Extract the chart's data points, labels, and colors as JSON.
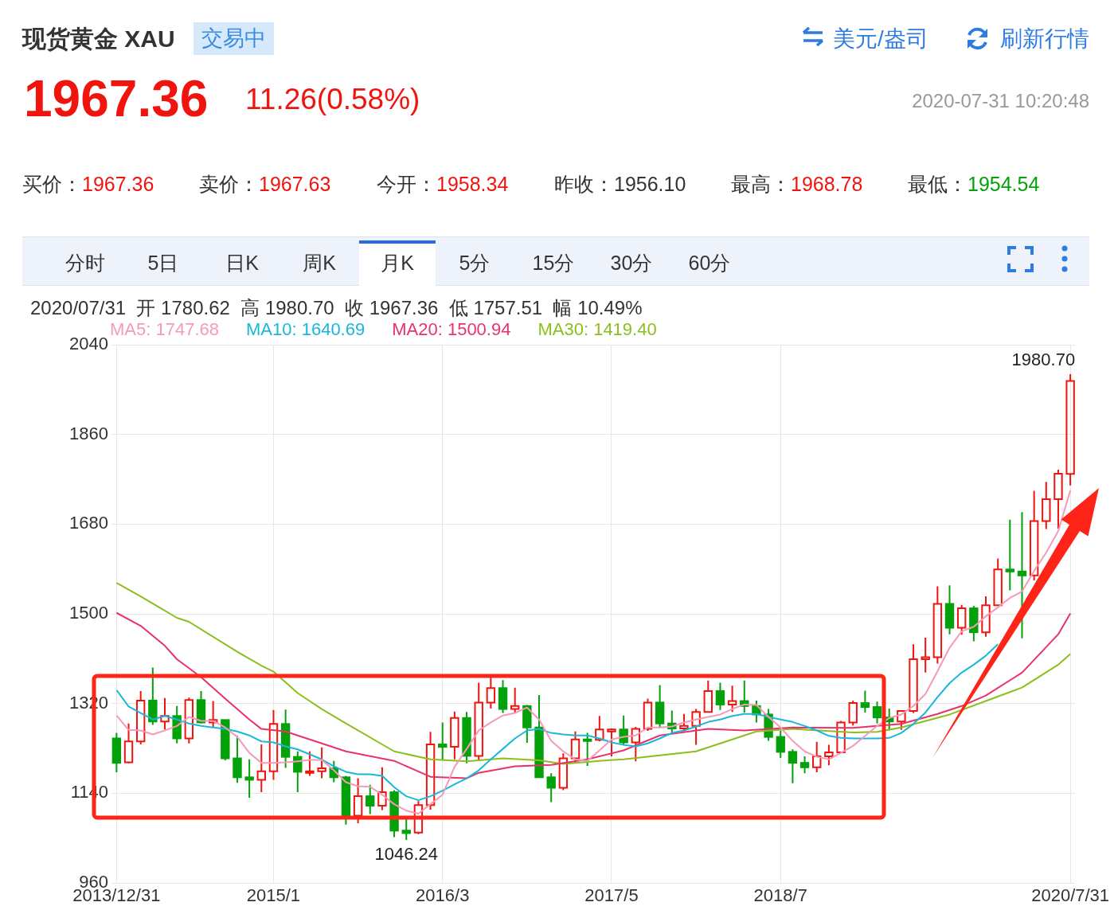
{
  "chart_data": {
    "type": "candlestick",
    "title": "现货黄金 XAU",
    "subtitle": "交易中",
    "annotations": [
      "1967.36",
      "11.26(0.58%)",
      "2020-07-31 10:20:48",
      "美元/盎司",
      "刷新行情",
      "买价：1967.36",
      "卖价：1967.63",
      "今开：1958.34",
      "昨收：1956.10",
      "最高：1968.78",
      "最低：1954.54",
      "分时",
      "5日",
      "日K",
      "周K",
      "月K",
      "5分",
      "15分",
      "30分",
      "60分",
      "2020/07/31  开 1780.62  高 1980.70  收 1967.36  低 1757.51  幅 10.49%",
      {
        "text": "1980.70",
        "x": "2020-07",
        "y": 1980.7
      },
      {
        "text": "1046.24",
        "x": "2015-12",
        "y": 1046.24
      }
    ],
    "x": [
      "2013-12",
      "2014-01",
      "2014-02",
      "2014-03",
      "2014-04",
      "2014-05",
      "2014-06",
      "2014-07",
      "2014-08",
      "2014-09",
      "2014-10",
      "2014-11",
      "2014-12",
      "2015-01",
      "2015-02",
      "2015-03",
      "2015-04",
      "2015-05",
      "2015-06",
      "2015-07",
      "2015-08",
      "2015-09",
      "2015-10",
      "2015-11",
      "2015-12",
      "2016-01",
      "2016-02",
      "2016-03",
      "2016-04",
      "2016-05",
      "2016-06",
      "2016-07",
      "2016-08",
      "2016-09",
      "2016-10",
      "2016-11",
      "2016-12",
      "2017-01",
      "2017-02",
      "2017-03",
      "2017-04",
      "2017-05",
      "2017-06",
      "2017-07",
      "2017-08",
      "2017-09",
      "2017-10",
      "2017-11",
      "2017-12",
      "2018-01",
      "2018-02",
      "2018-03",
      "2018-04",
      "2018-05",
      "2018-06",
      "2018-07",
      "2018-08",
      "2018-09",
      "2018-10",
      "2018-11",
      "2018-12",
      "2019-01",
      "2019-02",
      "2019-03",
      "2019-04",
      "2019-05",
      "2019-06",
      "2019-07",
      "2019-08",
      "2019-09",
      "2019-10",
      "2019-11",
      "2019-12",
      "2020-01",
      "2020-02",
      "2020-03",
      "2020-04",
      "2020-05",
      "2020-06",
      "2020-07"
    ],
    "ohlc": [
      [
        1250,
        1261,
        1182,
        1201
      ],
      [
        1202,
        1280,
        1200,
        1244
      ],
      [
        1244,
        1345,
        1238,
        1326
      ],
      [
        1326,
        1392,
        1277,
        1284
      ],
      [
        1284,
        1331,
        1268,
        1295
      ],
      [
        1295,
        1315,
        1240,
        1250
      ],
      [
        1250,
        1332,
        1240,
        1327
      ],
      [
        1327,
        1345,
        1280,
        1282
      ],
      [
        1282,
        1325,
        1272,
        1287
      ],
      [
        1287,
        1287,
        1206,
        1210
      ],
      [
        1210,
        1255,
        1161,
        1172
      ],
      [
        1172,
        1208,
        1131,
        1167
      ],
      [
        1167,
        1238,
        1142,
        1184
      ],
      [
        1184,
        1307,
        1167,
        1279
      ],
      [
        1279,
        1308,
        1191,
        1213
      ],
      [
        1213,
        1224,
        1142,
        1183
      ],
      [
        1183,
        1224,
        1175,
        1184
      ],
      [
        1184,
        1232,
        1170,
        1190
      ],
      [
        1190,
        1205,
        1162,
        1172
      ],
      [
        1172,
        1175,
        1077,
        1095
      ],
      [
        1095,
        1170,
        1080,
        1134
      ],
      [
        1134,
        1157,
        1098,
        1115
      ],
      [
        1115,
        1192,
        1106,
        1142
      ],
      [
        1142,
        1146,
        1052,
        1065
      ],
      [
        1065,
        1088,
        1046.24,
        1060
      ],
      [
        1061,
        1124,
        1058,
        1116
      ],
      [
        1116,
        1263,
        1107,
        1238
      ],
      [
        1238,
        1282,
        1206,
        1233
      ],
      [
        1233,
        1304,
        1208,
        1291
      ],
      [
        1291,
        1303,
        1200,
        1215
      ],
      [
        1215,
        1362,
        1207,
        1322
      ],
      [
        1322,
        1375,
        1310,
        1351
      ],
      [
        1351,
        1367,
        1301,
        1309
      ],
      [
        1309,
        1352,
        1302,
        1315
      ],
      [
        1315,
        1317,
        1241,
        1272
      ],
      [
        1272,
        1337,
        1171,
        1172
      ],
      [
        1172,
        1180,
        1122,
        1151
      ],
      [
        1151,
        1220,
        1146,
        1210
      ],
      [
        1210,
        1264,
        1200,
        1248
      ],
      [
        1248,
        1261,
        1195,
        1247
      ],
      [
        1247,
        1295,
        1244,
        1268
      ],
      [
        1264,
        1270,
        1214,
        1268
      ],
      [
        1268,
        1296,
        1236,
        1242
      ],
      [
        1242,
        1273,
        1204,
        1269
      ],
      [
        1269,
        1330,
        1265,
        1322
      ],
      [
        1322,
        1357,
        1271,
        1280
      ],
      [
        1280,
        1306,
        1261,
        1270
      ],
      [
        1270,
        1299,
        1264,
        1275
      ],
      [
        1275,
        1309,
        1237,
        1303
      ],
      [
        1303,
        1366,
        1303,
        1345
      ],
      [
        1345,
        1362,
        1307,
        1318
      ],
      [
        1318,
        1356,
        1303,
        1325
      ],
      [
        1325,
        1366,
        1302,
        1315
      ],
      [
        1315,
        1326,
        1282,
        1298
      ],
      [
        1298,
        1309,
        1245,
        1253
      ],
      [
        1253,
        1265,
        1211,
        1223
      ],
      [
        1223,
        1228,
        1160,
        1201
      ],
      [
        1201,
        1214,
        1180,
        1192
      ],
      [
        1192,
        1243,
        1182,
        1214
      ],
      [
        1214,
        1237,
        1196,
        1222
      ],
      [
        1222,
        1285,
        1221,
        1282
      ],
      [
        1282,
        1326,
        1276,
        1321
      ],
      [
        1321,
        1346,
        1302,
        1313
      ],
      [
        1313,
        1324,
        1280,
        1292
      ],
      [
        1292,
        1310,
        1266,
        1284
      ],
      [
        1284,
        1306,
        1267,
        1305
      ],
      [
        1305,
        1439,
        1301,
        1409
      ],
      [
        1409,
        1452,
        1382,
        1413
      ],
      [
        1413,
        1555,
        1400,
        1520
      ],
      [
        1520,
        1557,
        1459,
        1472
      ],
      [
        1472,
        1518,
        1458,
        1511
      ],
      [
        1511,
        1516,
        1445,
        1463
      ],
      [
        1463,
        1535,
        1454,
        1517
      ],
      [
        1517,
        1611,
        1517,
        1589
      ],
      [
        1589,
        1689,
        1547,
        1585
      ],
      [
        1585,
        1704,
        1451,
        1577
      ],
      [
        1577,
        1747,
        1567,
        1686
      ],
      [
        1686,
        1765,
        1670,
        1730
      ],
      [
        1730,
        1789,
        1671,
        1781
      ],
      [
        1780.62,
        1980.7,
        1757.51,
        1967.36
      ]
    ],
    "colors": [
      "#03a10a",
      "#f0140f",
      "#f0140f",
      "#03a10a",
      "#f0140f",
      "#03a10a",
      "#f0140f",
      "#03a10a",
      "#f0140f",
      "#03a10a",
      "#03a10a",
      "#03a10a",
      "#f0140f",
      "#f0140f",
      "#03a10a",
      "#03a10a",
      "#f0140f",
      "#f0140f",
      "#03a10a",
      "#03a10a",
      "#f0140f",
      "#03a10a",
      "#f0140f",
      "#03a10a",
      "#03a10a",
      "#f0140f",
      "#f0140f",
      "#03a10a",
      "#f0140f",
      "#03a10a",
      "#f0140f",
      "#f0140f",
      "#03a10a",
      "#f0140f",
      "#03a10a",
      "#03a10a",
      "#03a10a",
      "#f0140f",
      "#f0140f",
      "#03a10a",
      "#f0140f",
      "#f0140f",
      "#03a10a",
      "#f0140f",
      "#f0140f",
      "#03a10a",
      "#03a10a",
      "#f0140f",
      "#f0140f",
      "#f0140f",
      "#03a10a",
      "#f0140f",
      "#03a10a",
      "#03a10a",
      "#03a10a",
      "#03a10a",
      "#03a10a",
      "#03a10a",
      "#f0140f",
      "#f0140f",
      "#f0140f",
      "#f0140f",
      "#03a10a",
      "#03a10a",
      "#03a10a",
      "#f0140f",
      "#f0140f",
      "#f0140f",
      "#f0140f",
      "#03a10a",
      "#f0140f",
      "#03a10a",
      "#f0140f",
      "#f0140f",
      "#03a10a",
      "#03a10a",
      "#f0140f",
      "#f0140f",
      "#f0140f",
      "#f0140f"
    ],
    "series": [
      {
        "name": "MA5: 1747.68",
        "type": "line",
        "color": "#f59ab8",
        "values": [
          1296,
          1267,
          1266,
          1258,
          1266,
          1275,
          1293,
          1285,
          1285,
          1272,
          1253,
          1221,
          1201,
          1201,
          1202,
          1204,
          1207,
          1207,
          1186,
          1162,
          1154,
          1153,
          1137,
          1118,
          1105,
          1099,
          1118,
          1137,
          1193,
          1229,
          1266,
          1282,
          1296,
          1301,
          1312,
          1288,
          1245,
          1224,
          1208,
          1205,
          1226,
          1248,
          1253,
          1256,
          1272,
          1272,
          1274,
          1282,
          1288,
          1293,
          1298,
          1309,
          1318,
          1317,
          1293,
          1272,
          1245,
          1224,
          1213,
          1208,
          1221,
          1235,
          1255,
          1275,
          1291,
          1298,
          1315,
          1339,
          1385,
          1432,
          1465,
          1474,
          1495,
          1513,
          1532,
          1545,
          1586,
          1623,
          1666,
          1747.68
        ]
      },
      {
        "name": "MA10: 1640.69",
        "type": "line",
        "color": "#1ab7db",
        "values": [
          1347,
          1314,
          1301,
          1288,
          1295,
          1288,
          1280,
          1275,
          1272,
          1269,
          1264,
          1256,
          1244,
          1242,
          1234,
          1228,
          1218,
          1208,
          1194,
          1183,
          1178,
          1178,
          1175,
          1152,
          1134,
          1126,
          1134,
          1145,
          1158,
          1170,
          1186,
          1208,
          1229,
          1250,
          1266,
          1269,
          1261,
          1258,
          1256,
          1256,
          1250,
          1242,
          1237,
          1234,
          1240,
          1250,
          1261,
          1266,
          1274,
          1283,
          1288,
          1295,
          1299,
          1299,
          1293,
          1288,
          1283,
          1275,
          1266,
          1255,
          1251,
          1250,
          1250,
          1250,
          1251,
          1261,
          1279,
          1302,
          1333,
          1361,
          1382,
          1398,
          1416,
          1439,
          null,
          null,
          null,
          null,
          null,
          null
        ]
      },
      {
        "name": "MA20: 1500.94",
        "type": "line",
        "color": "#e8336a",
        "x": [
          "2013-12",
          "2014-02",
          "2014-04",
          "2014-05",
          "2014-07",
          "2014-09",
          "2014-11",
          "2014-12",
          "2015-02",
          "2015-04",
          "2015-07",
          "2015-11",
          "2016-02",
          "2016-05",
          "2016-06",
          "2016-09",
          "2016-12",
          "2017-03",
          "2017-06",
          "2017-09",
          "2018-01",
          "2018-04",
          "2018-08",
          "2019-01",
          "2019-03",
          "2019-05",
          "2019-08",
          "2019-10",
          "2019-12",
          "2020-03",
          "2020-06",
          "2020-07"
        ],
        "values": [
          1502,
          1476,
          1436,
          1409,
          1373,
          1330,
          1288,
          1269,
          1264,
          1248,
          1224,
          1205,
          1173,
          1170,
          1181,
          1194,
          1197,
          1208,
          1226,
          1256,
          1269,
          1266,
          1272,
          1271,
          1275,
          1279,
          1299,
          1315,
          1336,
          1382,
          1459,
          1500.94
        ]
      },
      {
        "name": "MA30: 1419.40",
        "type": "line",
        "color": "#8cbf1c",
        "x": [
          "2013-12",
          "2014-02",
          "2014-05",
          "2014-06",
          "2014-10",
          "2014-12",
          "2015-01",
          "2015-03",
          "2015-05",
          "2015-07",
          "2015-11",
          "2016-02",
          "2016-05",
          "2016-08",
          "2016-11",
          "2017-01",
          "2017-04",
          "2017-06",
          "2017-12",
          "2018-05",
          "2018-08",
          "2019-01",
          "2019-03",
          "2019-05",
          "2019-09",
          "2019-12",
          "2020-03",
          "2020-06",
          "2020-07"
        ],
        "values": [
          1562,
          1535,
          1492,
          1484,
          1424,
          1396,
          1384,
          1341,
          1309,
          1280,
          1224,
          1208,
          1204,
          1210,
          1206,
          1199,
          1205,
          1208,
          1224,
          1264,
          1269,
          1262,
          1263,
          1272,
          1298,
          1325,
          1352,
          1398,
          1419.4
        ]
      }
    ],
    "xlim": [
      "2013-11-19",
      "2020-07-13"
    ],
    "xticks": [
      {
        "value": "2013-12",
        "label": "2013/12/31"
      },
      {
        "value": "2015-01",
        "label": "2015/1"
      },
      {
        "value": "2016-03",
        "label": "2016/3"
      },
      {
        "value": "2017-05",
        "label": "2017/5"
      },
      {
        "value": "2018-07",
        "label": "2018/7"
      },
      {
        "value": "2020-07",
        "label": "2020/7/31"
      }
    ],
    "ylim": [
      960,
      2040
    ],
    "yticks": [
      960,
      1140,
      1320,
      1500,
      1680,
      1860,
      2040
    ],
    "grid": true,
    "legend": "top left"
  }
}
